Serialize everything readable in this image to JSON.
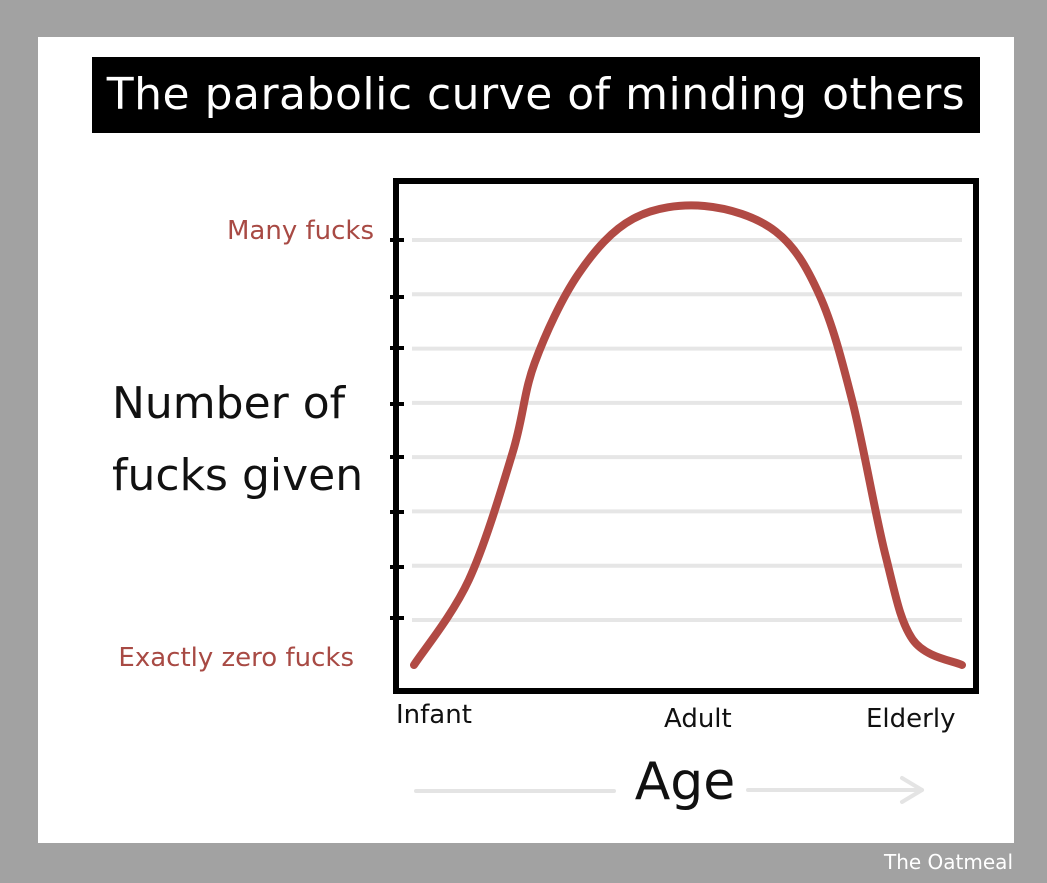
{
  "credit": "The Oatmeal",
  "chart_data": {
    "type": "line",
    "title": "The parabolic curve of minding others",
    "xlabel": "Age",
    "ylabel": [
      "Number of",
      "fucks given"
    ],
    "x_ticks": [
      "Infant",
      "Adult",
      "Elderly"
    ],
    "y_ticks": [
      "Exactly zero fucks",
      "Many fucks"
    ],
    "ylim": [
      0,
      1
    ],
    "grid": true,
    "series": [
      {
        "values": [
          {
            "x": 0.0,
            "y": 0.0
          },
          {
            "x": 0.1,
            "y": 0.2
          },
          {
            "x": 0.18,
            "y": 0.5
          },
          {
            "x": 0.22,
            "y": 0.71
          },
          {
            "x": 0.3,
            "y": 0.92
          },
          {
            "x": 0.4,
            "y": 1.05
          },
          {
            "x": 0.53,
            "y": 1.08
          },
          {
            "x": 0.66,
            "y": 1.02
          },
          {
            "x": 0.74,
            "y": 0.87
          },
          {
            "x": 0.8,
            "y": 0.62
          },
          {
            "x": 0.86,
            "y": 0.26
          },
          {
            "x": 0.91,
            "y": 0.06
          },
          {
            "x": 1.0,
            "y": 0.0
          }
        ]
      }
    ],
    "colors": {
      "line": "#b14a44",
      "y_tick_text": "#a84a44",
      "grid": "#e6e6e6",
      "axis": "#000000"
    }
  }
}
